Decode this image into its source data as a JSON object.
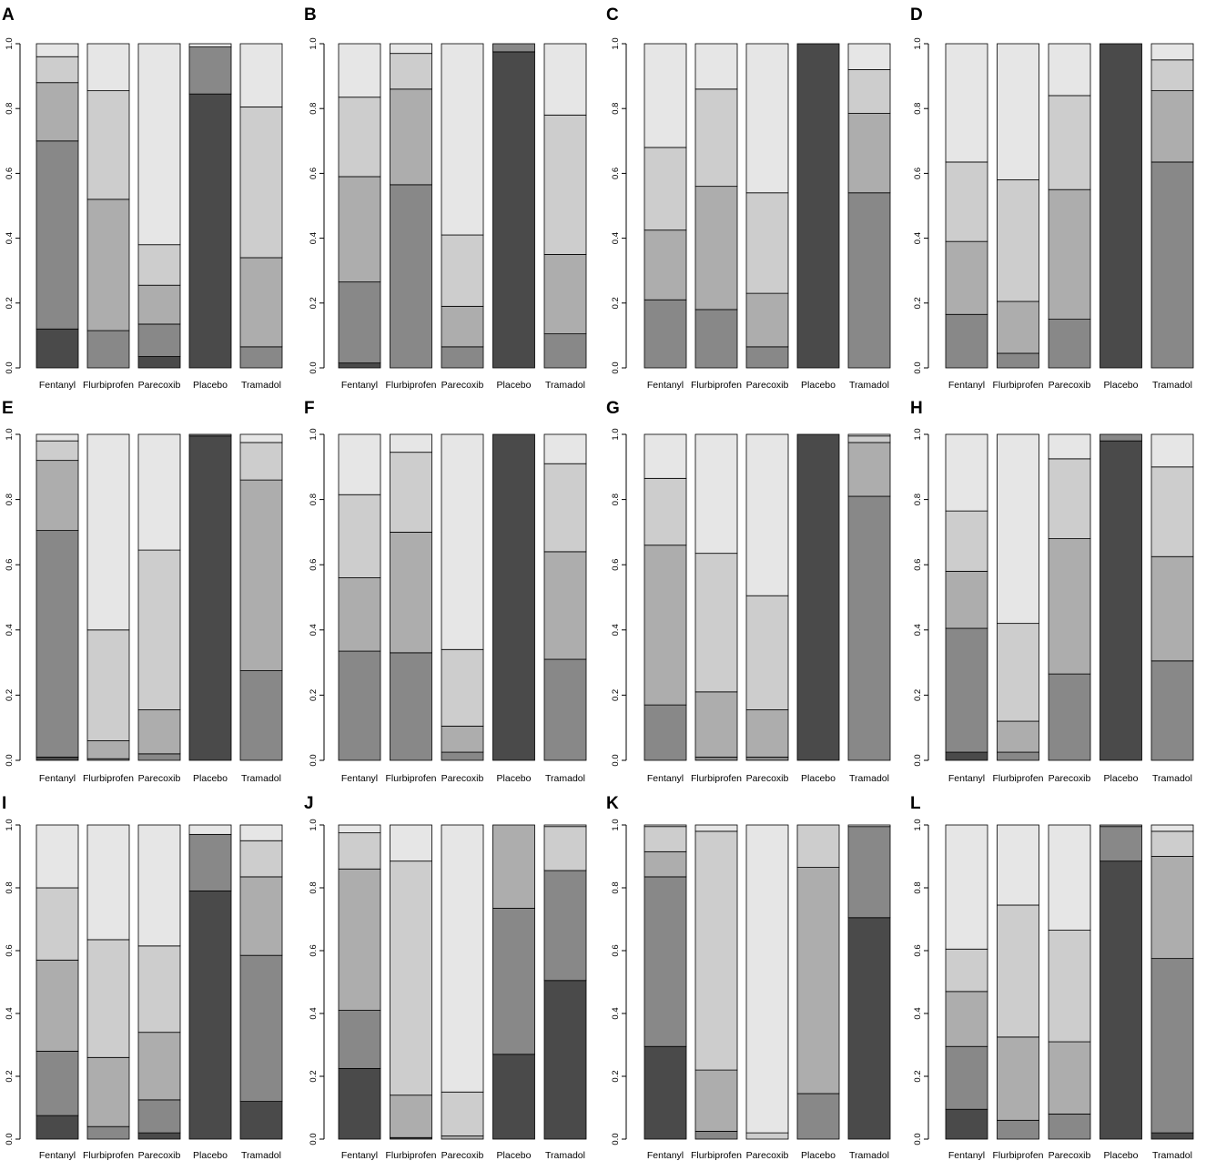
{
  "colors": {
    "band1": "#4a4a4a",
    "band2": "#888888",
    "band3": "#adadad",
    "band4": "#cdcdcd",
    "band5": "#e6e6e6",
    "stroke": "#000000"
  },
  "chart_data": [
    {
      "panel": "A",
      "type": "bar",
      "stacked": true,
      "categories": [
        "Fentanyl",
        "Flurbiprofen",
        "Parecoxib",
        "Placebo",
        "Tramadol"
      ],
      "ylim": [
        0,
        1
      ],
      "yticks": [
        "0.0",
        "0.2",
        "0.4",
        "0.6",
        "0.8",
        "1.0"
      ],
      "series": [
        {
          "values": [
            0.12,
            0.0,
            0.035,
            0.845,
            0.0
          ]
        },
        {
          "values": [
            0.58,
            0.115,
            0.1,
            0.145,
            0.065
          ]
        },
        {
          "values": [
            0.18,
            0.405,
            0.12,
            0.0,
            0.275
          ]
        },
        {
          "values": [
            0.08,
            0.335,
            0.125,
            0.0,
            0.465
          ]
        },
        {
          "values": [
            0.04,
            0.145,
            0.62,
            0.01,
            0.195
          ]
        }
      ]
    },
    {
      "panel": "B",
      "type": "bar",
      "stacked": true,
      "categories": [
        "Fentanyl",
        "Flurbiprofen",
        "Parecoxib",
        "Placebo",
        "Tramadol"
      ],
      "ylim": [
        0,
        1
      ],
      "yticks": [
        "0.0",
        "0.2",
        "0.4",
        "0.6",
        "0.8",
        "1.0"
      ],
      "series": [
        {
          "values": [
            0.015,
            0.0,
            0.0,
            0.975,
            0.0
          ]
        },
        {
          "values": [
            0.25,
            0.565,
            0.065,
            0.025,
            0.105
          ]
        },
        {
          "values": [
            0.325,
            0.295,
            0.125,
            0.0,
            0.245
          ]
        },
        {
          "values": [
            0.245,
            0.11,
            0.22,
            0.0,
            0.43
          ]
        },
        {
          "values": [
            0.165,
            0.03,
            0.59,
            0.0,
            0.22
          ]
        }
      ]
    },
    {
      "panel": "C",
      "type": "bar",
      "stacked": true,
      "categories": [
        "Fentanyl",
        "Flurbiprofen",
        "Parecoxib",
        "Placebo",
        "Tramadol"
      ],
      "ylim": [
        0,
        1
      ],
      "yticks": [
        "0.0",
        "0.2",
        "0.4",
        "0.6",
        "0.8",
        "1.0"
      ],
      "series": [
        {
          "values": [
            0.0,
            0.0,
            0.0,
            1.0,
            0.0
          ]
        },
        {
          "values": [
            0.21,
            0.18,
            0.065,
            0.0,
            0.54
          ]
        },
        {
          "values": [
            0.215,
            0.38,
            0.165,
            0.0,
            0.245
          ]
        },
        {
          "values": [
            0.255,
            0.3,
            0.31,
            0.0,
            0.135
          ]
        },
        {
          "values": [
            0.32,
            0.14,
            0.46,
            0.0,
            0.08
          ]
        }
      ]
    },
    {
      "panel": "D",
      "type": "bar",
      "stacked": true,
      "categories": [
        "Fentanyl",
        "Flurbiprofen",
        "Parecoxib",
        "Placebo",
        "Tramadol"
      ],
      "ylim": [
        0,
        1
      ],
      "yticks": [
        "0.0",
        "0.2",
        "0.4",
        "0.6",
        "0.8",
        "1.0"
      ],
      "series": [
        {
          "values": [
            0.0,
            0.0,
            0.0,
            1.0,
            0.0
          ]
        },
        {
          "values": [
            0.165,
            0.045,
            0.15,
            0.0,
            0.635
          ]
        },
        {
          "values": [
            0.225,
            0.16,
            0.4,
            0.0,
            0.22
          ]
        },
        {
          "values": [
            0.245,
            0.375,
            0.29,
            0.0,
            0.095
          ]
        },
        {
          "values": [
            0.365,
            0.42,
            0.16,
            0.0,
            0.05
          ]
        }
      ]
    },
    {
      "panel": "E",
      "type": "bar",
      "stacked": true,
      "categories": [
        "Fentanyl",
        "Flurbiprofen",
        "Parecoxib",
        "Placebo",
        "Tramadol"
      ],
      "ylim": [
        0,
        1
      ],
      "yticks": [
        "0.0",
        "0.2",
        "0.4",
        "0.6",
        "0.8",
        "1.0"
      ],
      "series": [
        {
          "values": [
            0.01,
            0.0,
            0.0,
            0.995,
            0.0
          ]
        },
        {
          "values": [
            0.695,
            0.005,
            0.02,
            0.005,
            0.275
          ]
        },
        {
          "values": [
            0.215,
            0.055,
            0.135,
            0.0,
            0.585
          ]
        },
        {
          "values": [
            0.06,
            0.34,
            0.49,
            0.0,
            0.115
          ]
        },
        {
          "values": [
            0.02,
            0.6,
            0.355,
            0.0,
            0.025
          ]
        }
      ]
    },
    {
      "panel": "F",
      "type": "bar",
      "stacked": true,
      "categories": [
        "Fentanyl",
        "Flurbiprofen",
        "Parecoxib",
        "Placebo",
        "Tramadol"
      ],
      "ylim": [
        0,
        1
      ],
      "yticks": [
        "0.0",
        "0.2",
        "0.4",
        "0.6",
        "0.8",
        "1.0"
      ],
      "series": [
        {
          "values": [
            0.0,
            0.0,
            0.0,
            1.0,
            0.0
          ]
        },
        {
          "values": [
            0.335,
            0.33,
            0.025,
            0.0,
            0.31
          ]
        },
        {
          "values": [
            0.225,
            0.37,
            0.08,
            0.0,
            0.33
          ]
        },
        {
          "values": [
            0.255,
            0.245,
            0.235,
            0.0,
            0.27
          ]
        },
        {
          "values": [
            0.185,
            0.055,
            0.66,
            0.0,
            0.09
          ]
        }
      ]
    },
    {
      "panel": "G",
      "type": "bar",
      "stacked": true,
      "categories": [
        "Fentanyl",
        "Flurbiprofen",
        "Parecoxib",
        "Placebo",
        "Tramadol"
      ],
      "ylim": [
        0,
        1
      ],
      "yticks": [
        "0.0",
        "0.2",
        "0.4",
        "0.6",
        "0.8",
        "1.0"
      ],
      "series": [
        {
          "values": [
            0.0,
            0.0,
            0.0,
            1.0,
            0.0
          ]
        },
        {
          "values": [
            0.17,
            0.01,
            0.01,
            0.0,
            0.81
          ]
        },
        {
          "values": [
            0.49,
            0.2,
            0.145,
            0.0,
            0.165
          ]
        },
        {
          "values": [
            0.205,
            0.425,
            0.35,
            0.0,
            0.02
          ]
        },
        {
          "values": [
            0.135,
            0.365,
            0.495,
            0.0,
            0.005
          ]
        }
      ]
    },
    {
      "panel": "H",
      "type": "bar",
      "stacked": true,
      "categories": [
        "Fentanyl",
        "Flurbiprofen",
        "Parecoxib",
        "Placebo",
        "Tramadol"
      ],
      "ylim": [
        0,
        1
      ],
      "yticks": [
        "0.0",
        "0.2",
        "0.4",
        "0.6",
        "0.8",
        "1.0"
      ],
      "series": [
        {
          "values": [
            0.025,
            0.0,
            0.0,
            0.98,
            0.0
          ]
        },
        {
          "values": [
            0.38,
            0.025,
            0.265,
            0.02,
            0.305
          ]
        },
        {
          "values": [
            0.175,
            0.095,
            0.415,
            0.0,
            0.32
          ]
        },
        {
          "values": [
            0.185,
            0.3,
            0.245,
            0.0,
            0.275
          ]
        },
        {
          "values": [
            0.235,
            0.58,
            0.075,
            0.0,
            0.1
          ]
        }
      ]
    },
    {
      "panel": "I",
      "type": "bar",
      "stacked": true,
      "categories": [
        "Fentanyl",
        "Flurbiprofen",
        "Parecoxib",
        "Placebo",
        "Tramadol"
      ],
      "ylim": [
        0,
        1
      ],
      "yticks": [
        "0.0",
        "0.2",
        "0.4",
        "0.6",
        "0.8",
        "1.0"
      ],
      "series": [
        {
          "values": [
            0.075,
            0.0,
            0.02,
            0.79,
            0.12
          ]
        },
        {
          "values": [
            0.205,
            0.04,
            0.105,
            0.18,
            0.465
          ]
        },
        {
          "values": [
            0.29,
            0.22,
            0.215,
            0.0,
            0.25
          ]
        },
        {
          "values": [
            0.23,
            0.375,
            0.275,
            0.0,
            0.115
          ]
        },
        {
          "values": [
            0.2,
            0.365,
            0.385,
            0.03,
            0.05
          ]
        }
      ]
    },
    {
      "panel": "J",
      "type": "bar",
      "stacked": true,
      "categories": [
        "Fentanyl",
        "Flurbiprofen",
        "Parecoxib",
        "Placebo",
        "Tramadol"
      ],
      "ylim": [
        0,
        1
      ],
      "yticks": [
        "0.0",
        "0.2",
        "0.4",
        "0.6",
        "0.8",
        "1.0"
      ],
      "series": [
        {
          "values": [
            0.225,
            0.005,
            0.0,
            0.27,
            0.505
          ]
        },
        {
          "values": [
            0.185,
            0.0,
            0.0,
            0.465,
            0.35
          ]
        },
        {
          "values": [
            0.45,
            0.135,
            0.01,
            0.265,
            0.0
          ]
        },
        {
          "values": [
            0.115,
            0.745,
            0.14,
            0.0,
            0.14
          ]
        },
        {
          "values": [
            0.025,
            0.115,
            0.85,
            0.0,
            0.005
          ]
        }
      ]
    },
    {
      "panel": "K",
      "type": "bar",
      "stacked": true,
      "categories": [
        "Fentanyl",
        "Flurbiprofen",
        "Parecoxib",
        "Placebo",
        "Tramadol"
      ],
      "ylim": [
        0,
        1
      ],
      "yticks": [
        "0.0",
        "0.2",
        "0.4",
        "0.6",
        "0.8",
        "1.0"
      ],
      "series": [
        {
          "values": [
            0.295,
            0.0,
            0.0,
            0.0,
            0.705
          ]
        },
        {
          "values": [
            0.54,
            0.025,
            0.0,
            0.145,
            0.29
          ]
        },
        {
          "values": [
            0.08,
            0.195,
            0.0,
            0.72,
            0.0
          ]
        },
        {
          "values": [
            0.08,
            0.76,
            0.02,
            0.135,
            0.0
          ]
        },
        {
          "values": [
            0.005,
            0.02,
            0.98,
            0.0,
            0.005
          ]
        }
      ]
    },
    {
      "panel": "L",
      "type": "bar",
      "stacked": true,
      "categories": [
        "Fentanyl",
        "Flurbiprofen",
        "Parecoxib",
        "Placebo",
        "Tramadol"
      ],
      "ylim": [
        0,
        1
      ],
      "yticks": [
        "0.0",
        "0.2",
        "0.4",
        "0.6",
        "0.8",
        "1.0"
      ],
      "series": [
        {
          "values": [
            0.095,
            0.0,
            0.0,
            0.885,
            0.02
          ]
        },
        {
          "values": [
            0.2,
            0.06,
            0.08,
            0.11,
            0.555
          ]
        },
        {
          "values": [
            0.175,
            0.265,
            0.23,
            0.005,
            0.325
          ]
        },
        {
          "values": [
            0.135,
            0.42,
            0.355,
            0.0,
            0.08
          ]
        },
        {
          "values": [
            0.395,
            0.255,
            0.335,
            0.0,
            0.02
          ]
        }
      ]
    }
  ]
}
